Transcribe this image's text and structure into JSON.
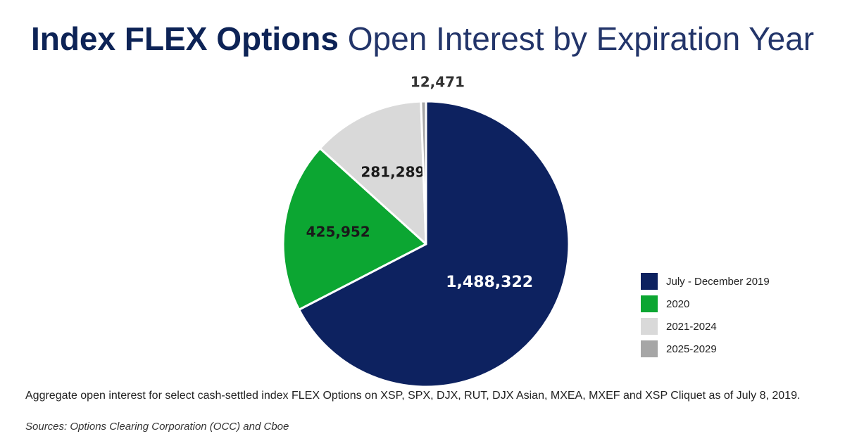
{
  "header": {
    "title_bold": "Index FLEX Options",
    "title_rest": "Open Interest by Expiration Year"
  },
  "chart_data": {
    "type": "pie",
    "title": "Index FLEX Options Open Interest by Expiration Year",
    "categories": [
      "July - December 2019",
      "2020",
      "2021-2024",
      "2025-2029"
    ],
    "values": [
      1488322,
      425952,
      281289,
      12471
    ],
    "data_labels": [
      "1,488,322",
      "425,952",
      "281,289",
      "12,471"
    ],
    "colors": [
      "#0d2260",
      "#0ca632",
      "#d9d9d9",
      "#a6a6a6"
    ],
    "label_colors": [
      "#ffffff",
      "#1a1a1a",
      "#1a1a1a",
      "#333333"
    ],
    "start_angle_deg": 0,
    "direction": "clockwise",
    "legend_position": "right"
  },
  "footer": {
    "note": "Aggregate open interest for select cash-settled index FLEX Options on XSP, SPX, DJX, RUT, DJX Asian, MXEA, MXEF and XSP Cliquet as of July 8, 2019.",
    "sources": "Sources: Options Clearing Corporation (OCC) and Cboe"
  }
}
